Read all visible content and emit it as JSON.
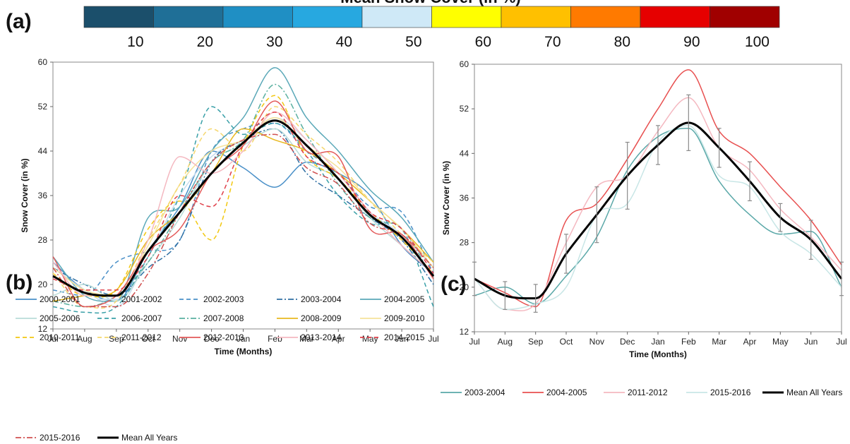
{
  "colorbar": {
    "title": "Mean Snow Cover (in %)",
    "colors": [
      "#1b4f6b",
      "#1f6f97",
      "#1f8fc4",
      "#27a8e0",
      "#cfe9f7",
      "#ffff00",
      "#ffc000",
      "#ff7a00",
      "#e60000",
      "#a00000"
    ],
    "labels": [
      "10",
      "20",
      "30",
      "40",
      "50",
      "60",
      "70",
      "80",
      "90",
      "100"
    ]
  },
  "chart_data": [
    {
      "panel": "(a)",
      "type": "line",
      "xlabel": "Time (Months)",
      "ylabel": "Snow Cover (in %)",
      "ylim": [
        12,
        60
      ],
      "yticks": [
        12,
        20,
        28,
        36,
        44,
        52,
        60
      ],
      "categories": [
        "Jul",
        "Aug",
        "Sep",
        "Oct",
        "Nov",
        "Dec",
        "Jan",
        "Feb",
        "Mar",
        "Apr",
        "May",
        "Jun",
        "Jul"
      ],
      "series": [
        {
          "name": "2000-2001",
          "color": "#4a90c8",
          "dash": "",
          "values": [
            24,
            19,
            17,
            26,
            34,
            44,
            41,
            37.5,
            42,
            40,
            36,
            27,
            22
          ]
        },
        {
          "name": "2001-2002",
          "color": "#c8dcee",
          "dash": "",
          "values": [
            23,
            19,
            16,
            25,
            36,
            43,
            46,
            50,
            46,
            40,
            33,
            29,
            23
          ]
        },
        {
          "name": "2002-2003",
          "color": "#4a90c8",
          "dash": "6,4",
          "values": [
            19,
            18,
            24,
            26,
            28,
            44,
            48,
            49,
            44,
            40,
            34,
            33,
            22
          ]
        },
        {
          "name": "2003-2004",
          "color": "#2f6fa3",
          "dash": "8,3,2,3",
          "values": [
            23,
            20,
            18,
            23,
            28,
            42,
            46,
            48,
            40,
            36,
            32,
            28,
            20
          ]
        },
        {
          "name": "2004-2005",
          "color": "#5aa8b8",
          "dash": "",
          "values": [
            25,
            18,
            17,
            32,
            34,
            44,
            50,
            59,
            50,
            44,
            37,
            32,
            24
          ]
        },
        {
          "name": "2005-2006",
          "color": "#b8dcd8",
          "dash": "",
          "values": [
            18,
            20,
            17,
            24,
            32,
            42,
            45,
            48,
            42,
            39,
            32,
            27,
            22
          ]
        },
        {
          "name": "2006-2007",
          "color": "#3aa0a8",
          "dash": "6,4",
          "values": [
            16,
            15,
            16,
            25,
            36,
            52,
            47,
            49,
            44,
            36,
            31,
            30,
            16
          ]
        },
        {
          "name": "2007-2008",
          "color": "#5ab0a0",
          "dash": "8,3,2,3",
          "values": [
            17,
            16,
            18,
            24,
            33,
            42,
            46,
            56,
            47,
            38,
            32,
            30,
            21
          ]
        },
        {
          "name": "2008-2009",
          "color": "#e8b820",
          "dash": "",
          "values": [
            17,
            18,
            19,
            28,
            33,
            40,
            48,
            46,
            44,
            40,
            35,
            30,
            24
          ]
        },
        {
          "name": "2009-2010",
          "color": "#f5e29a",
          "dash": "",
          "values": [
            23,
            19,
            18,
            27,
            38,
            44,
            46,
            50,
            45,
            41,
            35,
            30,
            23
          ]
        },
        {
          "name": "2010-2011",
          "color": "#f2c811",
          "dash": "6,4",
          "values": [
            22,
            18,
            19,
            30,
            35,
            28,
            45,
            54,
            43,
            39,
            33,
            28,
            22
          ]
        },
        {
          "name": "2011-2012",
          "color": "#f5d76e",
          "dash": "6,4",
          "values": [
            22,
            16,
            17,
            28,
            38,
            48,
            44,
            52,
            47,
            42,
            35,
            29,
            24
          ]
        },
        {
          "name": "2012-2013",
          "color": "#e35a5a",
          "dash": "",
          "values": [
            25,
            16,
            18,
            26,
            30,
            40,
            45,
            53,
            44,
            43,
            30,
            29,
            21
          ]
        },
        {
          "name": "2013-2014",
          "color": "#f4b8c0",
          "dash": "",
          "values": [
            24,
            18,
            18,
            28,
            43,
            40,
            44,
            51,
            46,
            40,
            33,
            27,
            22
          ]
        },
        {
          "name": "2014-2015",
          "color": "#e0404a",
          "dash": "6,4",
          "values": [
            21,
            19,
            19,
            25,
            36,
            34,
            45,
            51,
            43,
            40,
            33,
            30,
            22
          ]
        },
        {
          "name": "2015-2016",
          "color": "#d05050",
          "dash": "8,3,2,3",
          "values": [
            23,
            16,
            16,
            22,
            33,
            42,
            46,
            47,
            41,
            38,
            31,
            29,
            23
          ]
        },
        {
          "name": "Mean All Years",
          "color": "#000000",
          "dash": "",
          "width": 3,
          "values": [
            21.5,
            18.5,
            18,
            26,
            33,
            40,
            45.5,
            49.5,
            45,
            39,
            32.5,
            28.5,
            21.5
          ]
        }
      ]
    },
    {
      "panel": "(c)",
      "type": "line",
      "xlabel": "Time (Months)",
      "ylabel": "Snow Cover (in %)",
      "ylim": [
        12,
        60
      ],
      "yticks": [
        12,
        20,
        28,
        36,
        44,
        52,
        60
      ],
      "categories": [
        "Jul",
        "Aug",
        "Sep",
        "Oct",
        "Nov",
        "Dec",
        "Jan",
        "Feb",
        "Mar",
        "Apr",
        "May",
        "Jun",
        "Jul"
      ],
      "series": [
        {
          "name": "2003-2004",
          "color": "#5aa8a8",
          "dash": "",
          "values": [
            18.5,
            20,
            17,
            22,
            29,
            41,
            47,
            48.5,
            39,
            33,
            29.5,
            30,
            20
          ]
        },
        {
          "name": "2004-2005",
          "color": "#e85050",
          "dash": "",
          "values": [
            21.5,
            19,
            16.5,
            32,
            35,
            43,
            52,
            59,
            48,
            44,
            38,
            32,
            24
          ]
        },
        {
          "name": "2011-2012",
          "color": "#f4b8c0",
          "dash": "",
          "values": [
            21.5,
            16,
            17,
            28,
            38,
            40,
            48,
            54,
            45,
            41,
            34,
            29,
            23
          ]
        },
        {
          "name": "2015-2016",
          "color": "#c8e6e6",
          "dash": "",
          "values": [
            21.5,
            16,
            17,
            20,
            33,
            35,
            46,
            49,
            40,
            38,
            30,
            26,
            20
          ]
        },
        {
          "name": "Mean All Years",
          "color": "#000000",
          "dash": "",
          "width": 3,
          "values": [
            21.5,
            18.5,
            18,
            26,
            33,
            40,
            45.5,
            49.5,
            45,
            39,
            32.5,
            28.5,
            21.5
          ]
        }
      ],
      "error_bars": [
        3,
        2.5,
        2.5,
        3.5,
        5,
        6,
        3.5,
        5,
        3.5,
        3.5,
        2.5,
        3.5,
        3
      ]
    }
  ]
}
